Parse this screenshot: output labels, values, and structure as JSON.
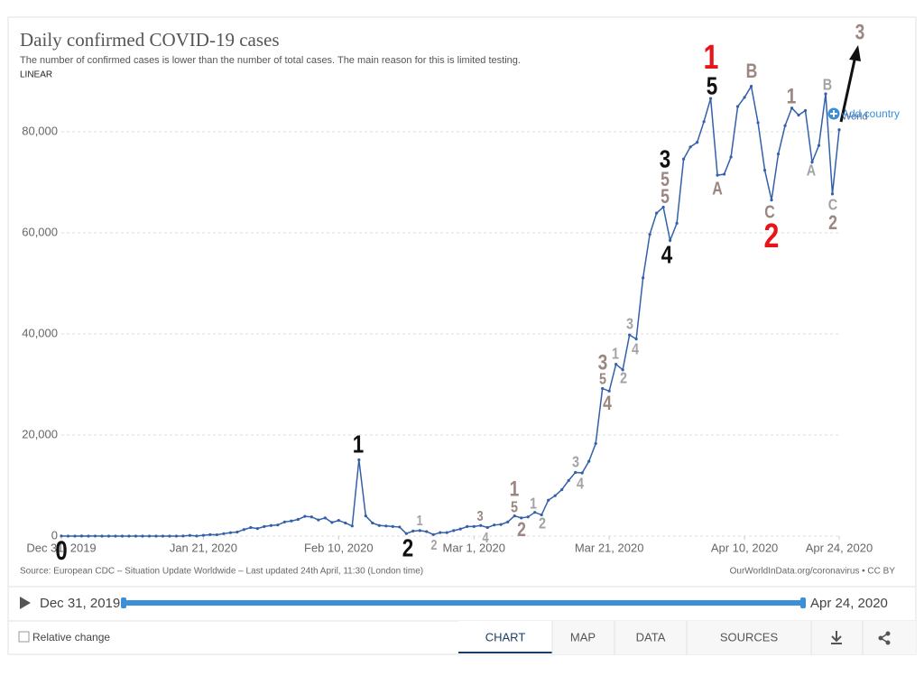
{
  "header": {
    "title": "Daily confirmed COVID-19 cases",
    "subtitle": "The number of confirmed cases is lower than the number of total cases. The main reason for this is limited testing.",
    "scale": "LINEAR"
  },
  "add_country": "Add country",
  "chart_data": {
    "type": "line",
    "x": [
      "2019-12-31",
      "2020-01-01",
      "2020-01-02",
      "2020-01-03",
      "2020-01-04",
      "2020-01-05",
      "2020-01-06",
      "2020-01-07",
      "2020-01-08",
      "2020-01-09",
      "2020-01-10",
      "2020-01-11",
      "2020-01-12",
      "2020-01-13",
      "2020-01-14",
      "2020-01-15",
      "2020-01-16",
      "2020-01-17",
      "2020-01-18",
      "2020-01-19",
      "2020-01-20",
      "2020-01-21",
      "2020-01-22",
      "2020-01-23",
      "2020-01-24",
      "2020-01-25",
      "2020-01-26",
      "2020-01-27",
      "2020-01-28",
      "2020-01-29",
      "2020-01-30",
      "2020-01-31",
      "2020-02-01",
      "2020-02-02",
      "2020-02-03",
      "2020-02-04",
      "2020-02-05",
      "2020-02-06",
      "2020-02-07",
      "2020-02-08",
      "2020-02-09",
      "2020-02-10",
      "2020-02-11",
      "2020-02-12",
      "2020-02-13",
      "2020-02-14",
      "2020-02-15",
      "2020-02-16",
      "2020-02-17",
      "2020-02-18",
      "2020-02-19",
      "2020-02-20",
      "2020-02-21",
      "2020-02-22",
      "2020-02-23",
      "2020-02-24",
      "2020-02-25",
      "2020-02-26",
      "2020-02-27",
      "2020-02-28",
      "2020-02-29",
      "2020-03-01",
      "2020-03-02",
      "2020-03-03",
      "2020-03-04",
      "2020-03-05",
      "2020-03-06",
      "2020-03-07",
      "2020-03-08",
      "2020-03-09",
      "2020-03-10",
      "2020-03-11",
      "2020-03-12",
      "2020-03-13",
      "2020-03-14",
      "2020-03-15",
      "2020-03-16",
      "2020-03-17",
      "2020-03-18",
      "2020-03-19",
      "2020-03-20",
      "2020-03-21",
      "2020-03-22",
      "2020-03-23",
      "2020-03-24",
      "2020-03-25",
      "2020-03-26",
      "2020-03-27",
      "2020-03-28",
      "2020-03-29",
      "2020-03-30",
      "2020-03-31",
      "2020-04-01",
      "2020-04-02",
      "2020-04-03",
      "2020-04-04",
      "2020-04-05",
      "2020-04-06",
      "2020-04-07",
      "2020-04-08",
      "2020-04-09",
      "2020-04-10",
      "2020-04-11",
      "2020-04-12",
      "2020-04-13",
      "2020-04-14",
      "2020-04-15",
      "2020-04-16",
      "2020-04-17",
      "2020-04-18",
      "2020-04-19",
      "2020-04-20",
      "2020-04-21",
      "2020-04-22",
      "2020-04-23",
      "2020-04-24"
    ],
    "series": [
      {
        "name": "World",
        "color": "#3360a9",
        "values": [
          27,
          0,
          0,
          17,
          0,
          15,
          0,
          0,
          0,
          0,
          0,
          0,
          0,
          0,
          0,
          0,
          0,
          4,
          17,
          136,
          20,
          150,
          300,
          260,
          480,
          680,
          800,
          1300,
          1700,
          1500,
          1900,
          2100,
          2200,
          2800,
          3000,
          3300,
          3900,
          3800,
          3200,
          3600,
          2700,
          3100,
          2600,
          2000,
          15100,
          4000,
          2600,
          2100,
          2000,
          1900,
          1800,
          500,
          1000,
          1100,
          900,
          300,
          700,
          700,
          1100,
          1400,
          1900,
          1900,
          2100,
          1700,
          2200,
          2300,
          2800,
          4000,
          3600,
          3800,
          4700,
          4200,
          7100,
          8000,
          9200,
          11000,
          12600,
          12500,
          14800,
          18300,
          29200,
          28700,
          34000,
          32900,
          39800,
          39000,
          51100,
          59700,
          63900,
          65100,
          58500,
          61900,
          74600,
          77000,
          77900,
          82000,
          86600,
          71400,
          71600,
          75000,
          85000,
          86800,
          89000,
          81800,
          72400,
          66500,
          75600,
          81200,
          84700,
          83300,
          84200,
          74000,
          77300,
          87500,
          67700,
          80400
        ]
      }
    ],
    "xticks": [
      {
        "value": "2019-12-31",
        "label": "Dec 31, 2019"
      },
      {
        "value": "2020-01-21",
        "label": "Jan 21, 2020"
      },
      {
        "value": "2020-02-10",
        "label": "Feb 10, 2020"
      },
      {
        "value": "2020-03-01",
        "label": "Mar 1, 2020"
      },
      {
        "value": "2020-03-21",
        "label": "Mar 21, 2020"
      },
      {
        "value": "2020-04-10",
        "label": "Apr 10, 2020"
      },
      {
        "value": "2020-04-24",
        "label": "Apr 24, 2020"
      }
    ],
    "ylim": [
      0,
      90000
    ],
    "yticks": [
      0,
      {
        "value": 20000,
        "label": "20,000"
      },
      {
        "value": 40000,
        "label": "40,000"
      },
      {
        "value": 60000,
        "label": "60,000"
      },
      {
        "value": 80000,
        "label": "80,000"
      }
    ],
    "grid": true,
    "annotations": [
      {
        "text": "0",
        "color": "#111111"
      },
      {
        "text": "1",
        "color": "#111111"
      },
      {
        "text": "2",
        "color": "#111111"
      },
      {
        "text": "3",
        "color": "#111111"
      },
      {
        "text": "4",
        "color": "#111111"
      },
      {
        "text": "5",
        "color": "#111111"
      },
      {
        "text": "1",
        "color": "#e8141b"
      },
      {
        "text": "2",
        "color": "#e8141b"
      },
      {
        "text": "3",
        "color": "#9b8681"
      },
      {
        "text": "B",
        "color": "#9b8681"
      },
      {
        "text": "1",
        "color": "#9b8681"
      },
      {
        "text": "B",
        "color": "#a3a3a3"
      },
      {
        "text": "A",
        "color": "#9b8681"
      },
      {
        "text": "C",
        "color": "#9b8681"
      },
      {
        "text": "A",
        "color": "#a3a3a3"
      },
      {
        "text": "C",
        "color": "#a3a3a3"
      },
      {
        "text": "2",
        "color": "#9b8681"
      },
      {
        "text": "5",
        "color": "#9b8681"
      },
      {
        "text": "5",
        "color": "#9b8681"
      },
      {
        "text": "1",
        "color": "#a3a3a3"
      },
      {
        "text": "2",
        "color": "#a3a3a3"
      },
      {
        "text": "3",
        "color": "#9b8681"
      },
      {
        "text": "4",
        "color": "#a3a3a3"
      },
      {
        "text": "1",
        "color": "#9b8681"
      },
      {
        "text": "5",
        "color": "#9b8681"
      },
      {
        "text": "2",
        "color": "#9b8681"
      },
      {
        "text": "1",
        "color": "#a3a3a3"
      },
      {
        "text": "2",
        "color": "#a3a3a3"
      },
      {
        "text": "3",
        "color": "#a3a3a3"
      },
      {
        "text": "4",
        "color": "#a3a3a3"
      },
      {
        "text": "3",
        "color": "#9b8681"
      },
      {
        "text": "5",
        "color": "#9b8681"
      },
      {
        "text": "4",
        "color": "#9b8681"
      },
      {
        "text": "1",
        "color": "#a3a3a3"
      },
      {
        "text": "2",
        "color": "#a3a3a3"
      },
      {
        "text": "3",
        "color": "#a3a3a3"
      },
      {
        "text": "4",
        "color": "#a3a3a3"
      }
    ]
  },
  "footer": {
    "source": "Source: European CDC – Situation Update Worldwide – Last updated 24th April, 11:30 (London time)",
    "credit": "OurWorldInData.org/coronavirus • CC BY"
  },
  "timeline": {
    "start": "Dec 31, 2019",
    "end": "Apr 24, 2020"
  },
  "controls": {
    "relative_change": "Relative change",
    "tabs": [
      "CHART",
      "MAP",
      "DATA",
      "SOURCES"
    ]
  }
}
